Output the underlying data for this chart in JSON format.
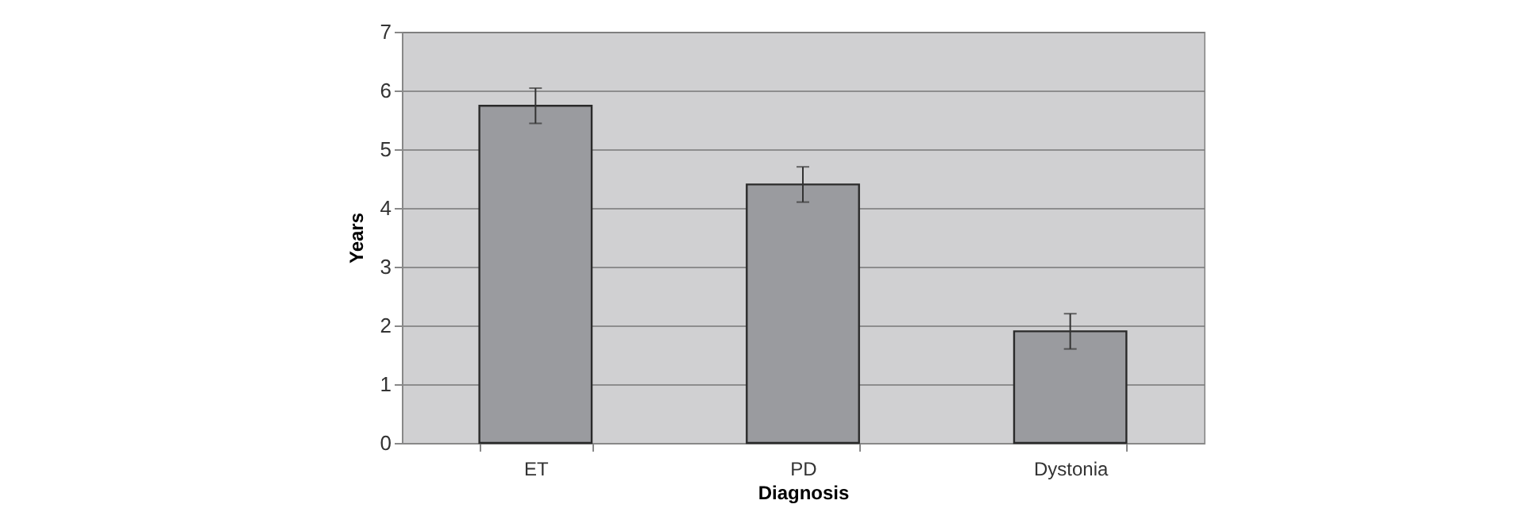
{
  "chart_data": {
    "type": "bar",
    "xlabel": "Diagnosis",
    "ylabel": "Years",
    "categories": [
      "ET",
      "PD",
      "Dystonia"
    ],
    "values": [
      5.74,
      4.4,
      1.9
    ],
    "errors": [
      0.3,
      0.3,
      0.3
    ],
    "color": "#9a9b9f",
    "ylim": [
      0,
      7
    ],
    "yticks": [
      0,
      1,
      2,
      3,
      4,
      5,
      6,
      7
    ],
    "grid": "y"
  }
}
